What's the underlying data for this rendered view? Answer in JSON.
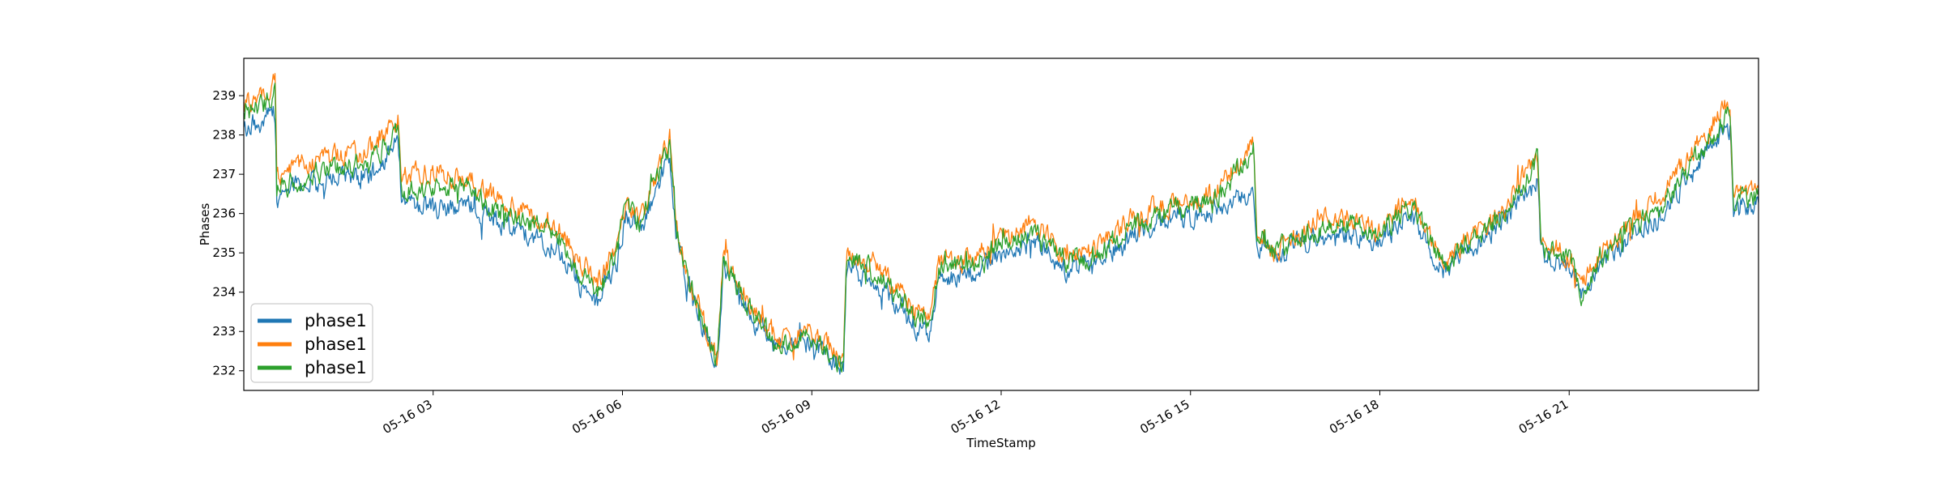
{
  "chart_data": {
    "type": "line",
    "title": "",
    "xlabel": "TimeStamp",
    "ylabel": "Phases",
    "x_range": [
      "05-16 00:00",
      "05-16 24:00"
    ],
    "ylim": [
      231.5,
      239.95
    ],
    "x_ticks": [
      {
        "hour": 3,
        "label": "05-16 03"
      },
      {
        "hour": 6,
        "label": "05-16 06"
      },
      {
        "hour": 9,
        "label": "05-16 09"
      },
      {
        "hour": 12,
        "label": "05-16 12"
      },
      {
        "hour": 15,
        "label": "05-16 15"
      },
      {
        "hour": 18,
        "label": "05-16 18"
      },
      {
        "hour": 21,
        "label": "05-16 21"
      }
    ],
    "y_ticks": [
      {
        "value": 232,
        "label": "232"
      },
      {
        "value": 233,
        "label": "233"
      },
      {
        "value": 234,
        "label": "234"
      },
      {
        "value": 235,
        "label": "235"
      },
      {
        "value": 236,
        "label": "236"
      },
      {
        "value": 237,
        "label": "237"
      },
      {
        "value": 238,
        "label": "238"
      },
      {
        "value": 239,
        "label": "239"
      }
    ],
    "grid": false,
    "legend_position": "bottom-left",
    "x_hours": [
      0,
      0.5,
      0.52,
      1.0,
      2.0,
      2.45,
      2.5,
      3.0,
      3.5,
      4.0,
      5.0,
      5.3,
      5.6,
      5.9,
      6.05,
      6.3,
      6.75,
      6.85,
      7.0,
      7.5,
      7.6,
      8.0,
      8.5,
      9.0,
      9.5,
      9.55,
      10.0,
      10.5,
      10.85,
      11.0,
      11.5,
      12.0,
      12.5,
      13.0,
      13.5,
      14.0,
      14.5,
      15.0,
      15.5,
      16.0,
      16.05,
      16.3,
      17.0,
      17.5,
      18.0,
      18.5,
      19.0,
      19.5,
      20.0,
      20.5,
      20.55,
      21.0,
      21.2,
      21.5,
      22.0,
      22.5,
      23.0,
      23.55,
      23.6,
      24.0
    ],
    "series": [
      {
        "name": "phase1",
        "color": "#1f77b4",
        "values": [
          238.1,
          238.6,
          236.4,
          236.8,
          236.9,
          237.8,
          236.3,
          236.1,
          236.3,
          235.8,
          235.1,
          234.2,
          233.7,
          234.7,
          236.0,
          235.6,
          237.5,
          235.5,
          234.4,
          232.1,
          234.7,
          233.4,
          232.5,
          232.7,
          232.0,
          234.6,
          234.3,
          233.4,
          232.9,
          234.3,
          234.5,
          234.9,
          235.3,
          234.6,
          234.7,
          235.4,
          235.8,
          235.9,
          236.2,
          236.6,
          235.3,
          234.9,
          235.4,
          235.5,
          235.3,
          236.0,
          234.5,
          235.2,
          235.8,
          236.8,
          235.0,
          234.6,
          233.8,
          234.7,
          235.4,
          236.0,
          237.1,
          238.2,
          236.0,
          236.3
        ]
      },
      {
        "name": "phase1",
        "color": "#ff7f0e",
        "values": [
          238.7,
          239.3,
          236.9,
          237.3,
          237.6,
          238.4,
          236.9,
          237.1,
          236.9,
          236.4,
          235.6,
          234.8,
          234.3,
          235.0,
          236.3,
          235.9,
          238.0,
          235.7,
          234.6,
          232.3,
          235.0,
          233.8,
          232.7,
          233.0,
          232.3,
          235.0,
          234.7,
          233.8,
          233.3,
          234.7,
          234.8,
          235.4,
          235.8,
          235.0,
          235.0,
          235.8,
          236.2,
          236.2,
          236.7,
          237.9,
          235.6,
          235.0,
          235.8,
          235.9,
          235.6,
          236.4,
          234.8,
          235.5,
          236.2,
          237.6,
          235.4,
          234.9,
          234.2,
          235.0,
          235.8,
          236.6,
          237.7,
          238.8,
          236.4,
          236.7
        ]
      },
      {
        "name": "phase1",
        "color": "#2ca02c",
        "values": [
          238.4,
          239.0,
          236.6,
          237.0,
          237.3,
          238.2,
          236.6,
          236.7,
          236.6,
          236.1,
          235.4,
          234.5,
          234.0,
          234.9,
          236.2,
          235.8,
          237.8,
          235.6,
          234.5,
          232.2,
          234.9,
          233.6,
          232.6,
          232.9,
          232.1,
          234.9,
          234.5,
          233.6,
          233.1,
          234.5,
          234.7,
          235.2,
          235.6,
          234.8,
          234.9,
          235.6,
          236.0,
          236.1,
          236.5,
          237.7,
          235.5,
          235.0,
          235.6,
          235.7,
          235.5,
          236.2,
          234.7,
          235.4,
          236.0,
          237.3,
          235.2,
          234.8,
          234.0,
          234.9,
          235.6,
          236.3,
          237.4,
          238.5,
          236.2,
          236.5
        ]
      }
    ]
  }
}
